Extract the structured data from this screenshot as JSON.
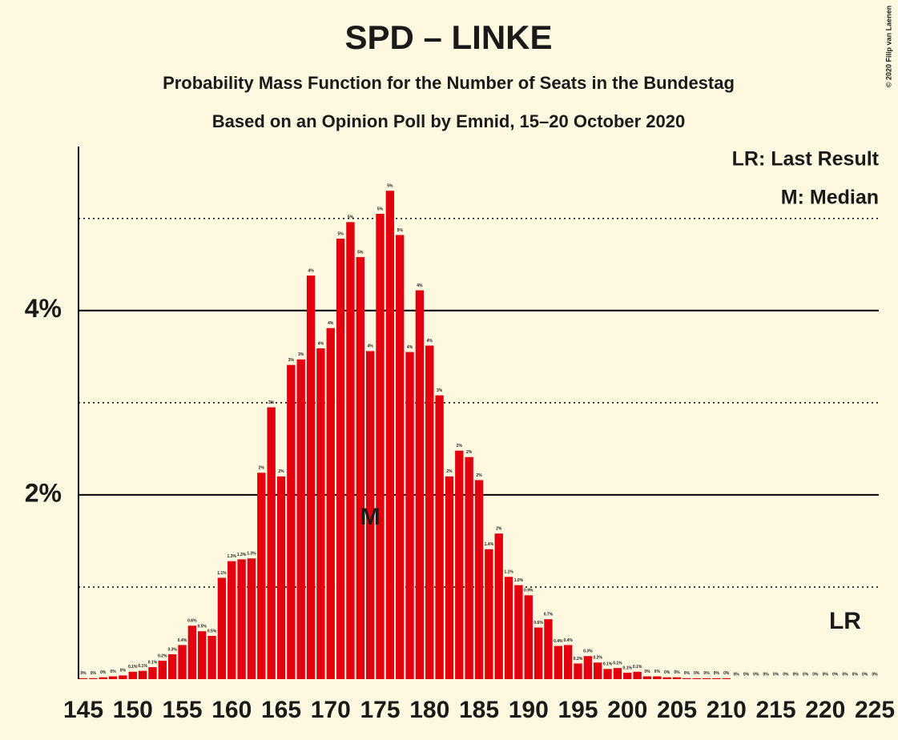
{
  "chart_data": {
    "type": "bar",
    "title": "SPD – LINKE",
    "subtitle": "Probability Mass Function for the Number of Seats in the Bundestag",
    "subtitle2": "Based on an Opinion Poll by Emnid, 15–20 October 2020",
    "copyright": "© 2020 Filip van Laenen",
    "legend": [
      "LR: Last Result",
      "M: Median"
    ],
    "color": "#e3000f",
    "x": [
      145,
      146,
      147,
      148,
      149,
      150,
      151,
      152,
      153,
      154,
      155,
      156,
      157,
      158,
      159,
      160,
      161,
      162,
      163,
      164,
      165,
      166,
      167,
      168,
      169,
      170,
      171,
      172,
      173,
      174,
      175,
      176,
      177,
      178,
      179,
      180,
      181,
      182,
      183,
      184,
      185,
      186,
      187,
      188,
      189,
      190,
      191,
      192,
      193,
      194,
      195,
      196,
      197,
      198,
      199,
      200,
      201,
      202,
      203,
      204,
      205,
      206,
      207,
      208,
      209,
      210,
      211,
      212,
      213,
      214,
      215,
      216,
      217,
      218,
      219,
      220,
      221,
      222,
      223,
      224,
      225
    ],
    "values": [
      0.01,
      0.01,
      0.02,
      0.03,
      0.04,
      0.08,
      0.09,
      0.13,
      0.2,
      0.27,
      0.37,
      0.58,
      0.52,
      0.47,
      1.1,
      1.28,
      1.3,
      1.31,
      2.24,
      2.95,
      2.2,
      3.41,
      3.47,
      4.38,
      3.59,
      3.81,
      4.78,
      4.96,
      4.58,
      3.56,
      5.05,
      5.3,
      4.82,
      3.55,
      4.22,
      3.62,
      3.08,
      2.2,
      2.48,
      2.41,
      2.16,
      1.41,
      1.58,
      1.11,
      1.02,
      0.91,
      0.56,
      0.65,
      0.36,
      0.37,
      0.17,
      0.25,
      0.18,
      0.11,
      0.12,
      0.07,
      0.08,
      0.03,
      0.03,
      0.02,
      0.02,
      0.01,
      0.01,
      0.01,
      0.01,
      0.01,
      0,
      0,
      0,
      0,
      0,
      0,
      0,
      0,
      0,
      0,
      0,
      0,
      0,
      0,
      0
    ],
    "value_labels": [
      "0%",
      "0%",
      "0%",
      "0%",
      "0%",
      "0.1%",
      "0.1%",
      "0.1%",
      "0.2%",
      "0.3%",
      "0.4%",
      "0.6%",
      "0.5%",
      "0.5%",
      "1.1%",
      "1.3%",
      "1.3%",
      "1.3%",
      "2%",
      "3%",
      "2%",
      "3%",
      "3%",
      "4%",
      "4%",
      "4%",
      "5%",
      "5%",
      "5%",
      "4%",
      "5%",
      "5%",
      "5%",
      "4%",
      "4%",
      "4%",
      "3%",
      "2%",
      "2%",
      "2%",
      "2%",
      "1.4%",
      "2%",
      "1.1%",
      "1.0%",
      "0.9%",
      "0.6%",
      "0.7%",
      "0.4%",
      "0.4%",
      "0.2%",
      "0.3%",
      "0.2%",
      "0.1%",
      "0.1%",
      "0.1%",
      "0.1%",
      "0%",
      "0%",
      "0%",
      "0%",
      "0%",
      "0%",
      "0%",
      "0%",
      "0%",
      "0%",
      "0%",
      "0%",
      "0%",
      "0%",
      "0%",
      "0%",
      "0%",
      "0%",
      "0%",
      "0%",
      "0%",
      "0%",
      "0%",
      "0%"
    ],
    "xlim": [
      145,
      225
    ],
    "xticks": [
      145,
      150,
      155,
      160,
      165,
      170,
      175,
      180,
      185,
      190,
      195,
      200,
      205,
      210,
      215,
      220,
      225
    ],
    "ylim": [
      0,
      5.78
    ],
    "yticks": [
      {
        "value": 2,
        "label": "2%"
      },
      {
        "value": 4,
        "label": "4%"
      }
    ],
    "minor_grid": [
      1,
      3,
      5
    ],
    "annotations": [
      {
        "label": "M",
        "x": 174
      },
      {
        "label": "LR",
        "x": 222
      }
    ]
  }
}
